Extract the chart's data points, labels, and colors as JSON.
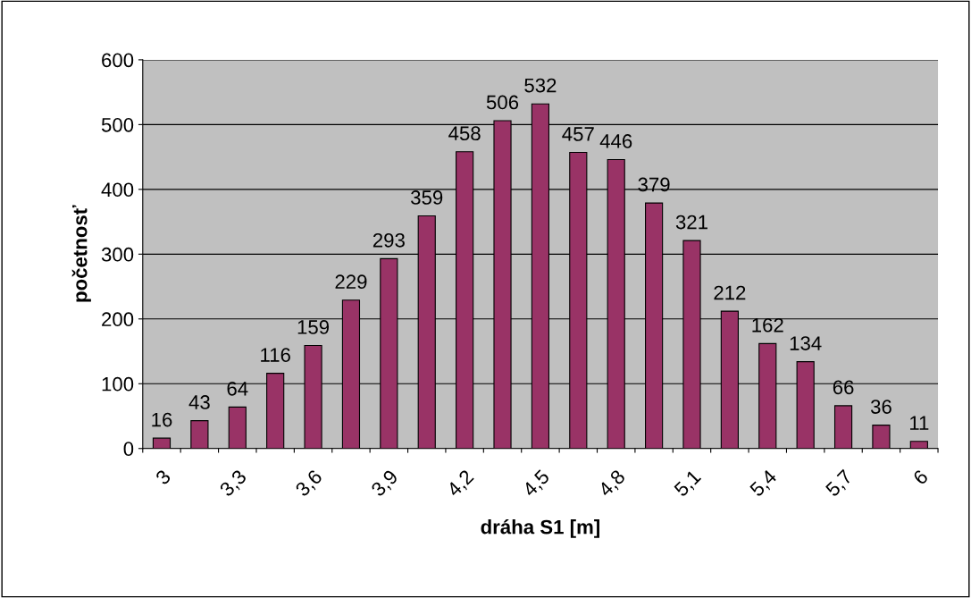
{
  "chart_data": {
    "type": "bar",
    "xlabel": "dráha S1 [m]",
    "ylabel": "početnosť",
    "categories": [
      "3",
      null,
      "3,3",
      null,
      "3,6",
      null,
      "3,9",
      null,
      "4,2",
      null,
      "4,5",
      null,
      "4,8",
      null,
      "5,1",
      null,
      "5,4",
      null,
      "5,7",
      null,
      "6"
    ],
    "values": [
      16,
      43,
      64,
      116,
      159,
      229,
      293,
      359,
      458,
      506,
      532,
      457,
      446,
      379,
      321,
      212,
      162,
      134,
      66,
      36,
      11
    ],
    "color": "#993366",
    "ylim": [
      0,
      600
    ],
    "yticks": [
      0,
      100,
      200,
      300,
      400,
      500,
      600
    ],
    "grid": "y",
    "data_labels": true
  }
}
